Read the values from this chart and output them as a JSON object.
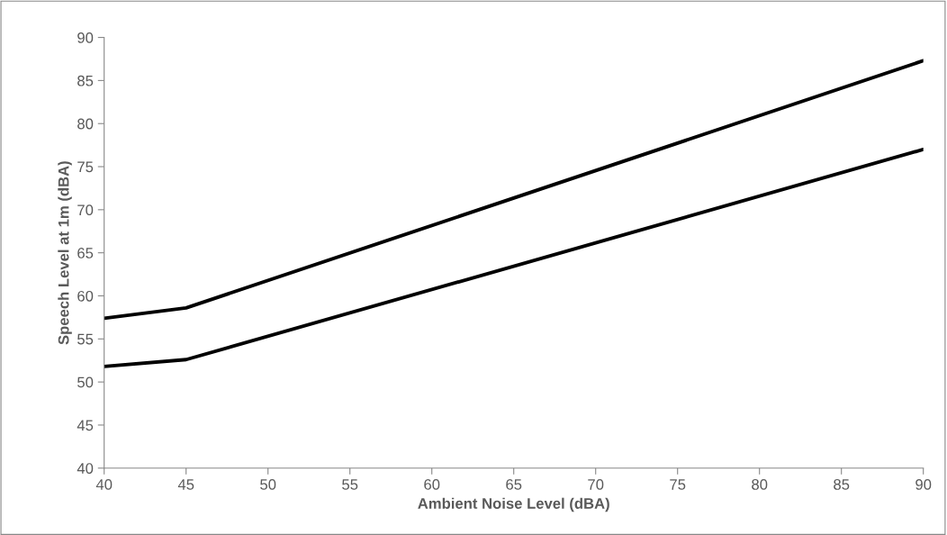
{
  "chart_data": {
    "type": "line",
    "xlabel": "Ambient Noise Level (dBA)",
    "ylabel": "Speech Level at 1m (dBA)",
    "x": [
      40,
      45,
      90
    ],
    "series": [
      {
        "color": "#000000",
        "values": [
          57.4,
          58.6,
          87.3
        ]
      },
      {
        "color": "#000000",
        "values": [
          51.8,
          52.6,
          77.0
        ]
      }
    ],
    "xlim": [
      40,
      90
    ],
    "xticks": [
      40,
      45,
      50,
      55,
      60,
      65,
      70,
      75,
      80,
      85,
      90
    ],
    "ylim": [
      40,
      90
    ],
    "yticks": [
      40,
      45,
      50,
      55,
      60,
      65,
      70,
      75,
      80,
      85,
      90
    ],
    "grid": false,
    "legend": false,
    "marker": "none",
    "line_style": "solid"
  }
}
